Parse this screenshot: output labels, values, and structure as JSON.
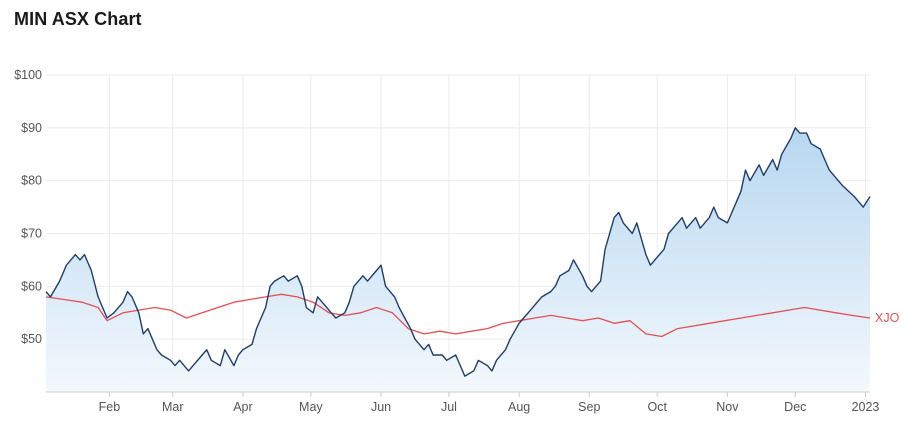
{
  "title": "MIN ASX Chart",
  "chart_data": {
    "type": "area",
    "title": "MIN ASX Chart",
    "xlabel": "",
    "ylabel": "",
    "grid": true,
    "x_start": "2022-01-04",
    "x_end": "2023-01-03",
    "ylim": [
      40,
      100
    ],
    "y_ticks": [
      50,
      60,
      70,
      80,
      90,
      100
    ],
    "y_tick_labels": [
      "$50",
      "$60",
      "$70",
      "$80",
      "$90",
      "$100"
    ],
    "x_ticks": [
      {
        "date": "2022-02-01",
        "label": "Feb"
      },
      {
        "date": "2022-03-01",
        "label": "Mar"
      },
      {
        "date": "2022-04-01",
        "label": "Apr"
      },
      {
        "date": "2022-05-01",
        "label": "May"
      },
      {
        "date": "2022-06-01",
        "label": "Jun"
      },
      {
        "date": "2022-07-01",
        "label": "Jul"
      },
      {
        "date": "2022-08-01",
        "label": "Aug"
      },
      {
        "date": "2022-09-01",
        "label": "Sep"
      },
      {
        "date": "2022-10-01",
        "label": "Oct"
      },
      {
        "date": "2022-11-01",
        "label": "Nov"
      },
      {
        "date": "2022-12-01",
        "label": "Dec"
      },
      {
        "date": "2023-01-01",
        "label": "2023"
      }
    ],
    "colors": {
      "min_line": "#1f3d6b",
      "min_fill_top": "#b7d7f0",
      "min_fill_bottom": "#f3f8fd",
      "xjo_line": "#e05252",
      "grid": "#ebebeb",
      "axis": "#cccccc"
    },
    "series": [
      {
        "id": "min",
        "points": [
          [
            "2022-01-04",
            59
          ],
          [
            "2022-01-06",
            58
          ],
          [
            "2022-01-10",
            61
          ],
          [
            "2022-01-13",
            64
          ],
          [
            "2022-01-17",
            66
          ],
          [
            "2022-01-19",
            65
          ],
          [
            "2022-01-21",
            66
          ],
          [
            "2022-01-24",
            63
          ],
          [
            "2022-01-27",
            58
          ],
          [
            "2022-01-31",
            54
          ],
          [
            "2022-02-03",
            55
          ],
          [
            "2022-02-07",
            57
          ],
          [
            "2022-02-09",
            59
          ],
          [
            "2022-02-11",
            58
          ],
          [
            "2022-02-14",
            55
          ],
          [
            "2022-02-16",
            51
          ],
          [
            "2022-02-18",
            52
          ],
          [
            "2022-02-22",
            48
          ],
          [
            "2022-02-24",
            47
          ],
          [
            "2022-02-28",
            46
          ],
          [
            "2022-03-02",
            45
          ],
          [
            "2022-03-04",
            46
          ],
          [
            "2022-03-08",
            44
          ],
          [
            "2022-03-10",
            45
          ],
          [
            "2022-03-14",
            47
          ],
          [
            "2022-03-16",
            48
          ],
          [
            "2022-03-18",
            46
          ],
          [
            "2022-03-22",
            45
          ],
          [
            "2022-03-24",
            48
          ],
          [
            "2022-03-28",
            45
          ],
          [
            "2022-03-30",
            47
          ],
          [
            "2022-04-01",
            48
          ],
          [
            "2022-04-05",
            49
          ],
          [
            "2022-04-07",
            52
          ],
          [
            "2022-04-11",
            56
          ],
          [
            "2022-04-13",
            60
          ],
          [
            "2022-04-15",
            61
          ],
          [
            "2022-04-19",
            62
          ],
          [
            "2022-04-21",
            61
          ],
          [
            "2022-04-25",
            62
          ],
          [
            "2022-04-27",
            60
          ],
          [
            "2022-04-29",
            56
          ],
          [
            "2022-05-02",
            55
          ],
          [
            "2022-05-04",
            58
          ],
          [
            "2022-05-06",
            57
          ],
          [
            "2022-05-10",
            55
          ],
          [
            "2022-05-12",
            54
          ],
          [
            "2022-05-16",
            55
          ],
          [
            "2022-05-18",
            57
          ],
          [
            "2022-05-20",
            60
          ],
          [
            "2022-05-24",
            62
          ],
          [
            "2022-05-26",
            61
          ],
          [
            "2022-05-30",
            63
          ],
          [
            "2022-06-01",
            64
          ],
          [
            "2022-06-03",
            60
          ],
          [
            "2022-06-07",
            58
          ],
          [
            "2022-06-09",
            56
          ],
          [
            "2022-06-14",
            52
          ],
          [
            "2022-06-16",
            50
          ],
          [
            "2022-06-20",
            48
          ],
          [
            "2022-06-22",
            49
          ],
          [
            "2022-06-24",
            47
          ],
          [
            "2022-06-28",
            47
          ],
          [
            "2022-06-30",
            46
          ],
          [
            "2022-07-04",
            47
          ],
          [
            "2022-07-06",
            45
          ],
          [
            "2022-07-08",
            43
          ],
          [
            "2022-07-12",
            44
          ],
          [
            "2022-07-14",
            46
          ],
          [
            "2022-07-18",
            45
          ],
          [
            "2022-07-20",
            44
          ],
          [
            "2022-07-22",
            46
          ],
          [
            "2022-07-26",
            48
          ],
          [
            "2022-07-28",
            50
          ],
          [
            "2022-08-01",
            53
          ],
          [
            "2022-08-03",
            54
          ],
          [
            "2022-08-05",
            55
          ],
          [
            "2022-08-09",
            57
          ],
          [
            "2022-08-11",
            58
          ],
          [
            "2022-08-15",
            59
          ],
          [
            "2022-08-17",
            60
          ],
          [
            "2022-08-19",
            62
          ],
          [
            "2022-08-23",
            63
          ],
          [
            "2022-08-25",
            65
          ],
          [
            "2022-08-29",
            62
          ],
          [
            "2022-08-31",
            60
          ],
          [
            "2022-09-02",
            59
          ],
          [
            "2022-09-06",
            61
          ],
          [
            "2022-09-08",
            67
          ],
          [
            "2022-09-12",
            73
          ],
          [
            "2022-09-14",
            74
          ],
          [
            "2022-09-16",
            72
          ],
          [
            "2022-09-20",
            70
          ],
          [
            "2022-09-22",
            72
          ],
          [
            "2022-09-26",
            66
          ],
          [
            "2022-09-28",
            64
          ],
          [
            "2022-09-30",
            65
          ],
          [
            "2022-10-04",
            67
          ],
          [
            "2022-10-06",
            70
          ],
          [
            "2022-10-10",
            72
          ],
          [
            "2022-10-12",
            73
          ],
          [
            "2022-10-14",
            71
          ],
          [
            "2022-10-18",
            73
          ],
          [
            "2022-10-20",
            71
          ],
          [
            "2022-10-24",
            73
          ],
          [
            "2022-10-26",
            75
          ],
          [
            "2022-10-28",
            73
          ],
          [
            "2022-11-01",
            72
          ],
          [
            "2022-11-03",
            74
          ],
          [
            "2022-11-07",
            78
          ],
          [
            "2022-11-09",
            82
          ],
          [
            "2022-11-11",
            80
          ],
          [
            "2022-11-15",
            83
          ],
          [
            "2022-11-17",
            81
          ],
          [
            "2022-11-21",
            84
          ],
          [
            "2022-11-23",
            82
          ],
          [
            "2022-11-25",
            85
          ],
          [
            "2022-11-29",
            88
          ],
          [
            "2022-12-01",
            90
          ],
          [
            "2022-12-03",
            89
          ],
          [
            "2022-12-06",
            89
          ],
          [
            "2022-12-08",
            87
          ],
          [
            "2022-12-12",
            86
          ],
          [
            "2022-12-14",
            84
          ],
          [
            "2022-12-16",
            82
          ],
          [
            "2022-12-20",
            80
          ],
          [
            "2022-12-22",
            79
          ],
          [
            "2022-12-27",
            77
          ],
          [
            "2022-12-29",
            76
          ],
          [
            "2022-12-31",
            75
          ],
          [
            "2023-01-03",
            77
          ]
        ]
      },
      {
        "id": "xjo",
        "name": "XJO",
        "points": [
          [
            "2022-01-04",
            58
          ],
          [
            "2022-01-12",
            57.5
          ],
          [
            "2022-01-20",
            57
          ],
          [
            "2022-01-27",
            56
          ],
          [
            "2022-01-31",
            53.5
          ],
          [
            "2022-02-07",
            55
          ],
          [
            "2022-02-14",
            55.5
          ],
          [
            "2022-02-21",
            56
          ],
          [
            "2022-02-28",
            55.5
          ],
          [
            "2022-03-07",
            54
          ],
          [
            "2022-03-14",
            55
          ],
          [
            "2022-03-21",
            56
          ],
          [
            "2022-03-28",
            57
          ],
          [
            "2022-04-04",
            57.5
          ],
          [
            "2022-04-11",
            58
          ],
          [
            "2022-04-18",
            58.5
          ],
          [
            "2022-04-25",
            58
          ],
          [
            "2022-05-02",
            57
          ],
          [
            "2022-05-09",
            55
          ],
          [
            "2022-05-16",
            54.5
          ],
          [
            "2022-05-23",
            55
          ],
          [
            "2022-05-30",
            56
          ],
          [
            "2022-06-06",
            55
          ],
          [
            "2022-06-13",
            52
          ],
          [
            "2022-06-20",
            51
          ],
          [
            "2022-06-27",
            51.5
          ],
          [
            "2022-07-04",
            51
          ],
          [
            "2022-07-11",
            51.5
          ],
          [
            "2022-07-18",
            52
          ],
          [
            "2022-07-25",
            53
          ],
          [
            "2022-08-01",
            53.5
          ],
          [
            "2022-08-08",
            54
          ],
          [
            "2022-08-15",
            54.5
          ],
          [
            "2022-08-22",
            54
          ],
          [
            "2022-08-29",
            53.5
          ],
          [
            "2022-09-05",
            54
          ],
          [
            "2022-09-12",
            53
          ],
          [
            "2022-09-19",
            53.5
          ],
          [
            "2022-09-26",
            51
          ],
          [
            "2022-10-03",
            50.5
          ],
          [
            "2022-10-10",
            52
          ],
          [
            "2022-10-17",
            52.5
          ],
          [
            "2022-10-24",
            53
          ],
          [
            "2022-10-31",
            53.5
          ],
          [
            "2022-11-07",
            54
          ],
          [
            "2022-11-14",
            54.5
          ],
          [
            "2022-11-21",
            55
          ],
          [
            "2022-11-28",
            55.5
          ],
          [
            "2022-12-05",
            56
          ],
          [
            "2022-12-12",
            55.5
          ],
          [
            "2022-12-19",
            55
          ],
          [
            "2022-12-26",
            54.5
          ],
          [
            "2023-01-03",
            54
          ]
        ]
      }
    ]
  }
}
